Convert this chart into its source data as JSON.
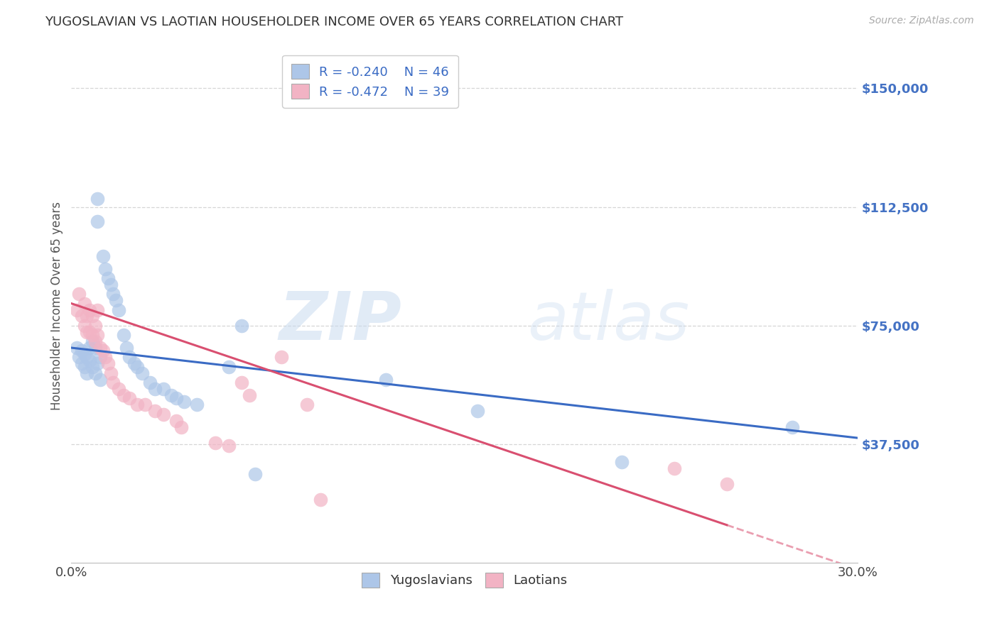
{
  "title": "YUGOSLAVIAN VS LAOTIAN HOUSEHOLDER INCOME OVER 65 YEARS CORRELATION CHART",
  "source": "Source: ZipAtlas.com",
  "ylabel": "Householder Income Over 65 years",
  "yticklabels": [
    "$37,500",
    "$75,000",
    "$112,500",
    "$150,000"
  ],
  "ytick_values": [
    37500,
    75000,
    112500,
    150000
  ],
  "ylim": [
    0,
    162500
  ],
  "xlim": [
    0.0,
    0.3
  ],
  "xticklabels": [
    "0.0%",
    "30.0%"
  ],
  "xtick_values": [
    0.0,
    0.3
  ],
  "blue_color": "#adc6e8",
  "pink_color": "#f2b3c4",
  "blue_line_color": "#3a6bc4",
  "pink_line_color": "#d94f70",
  "r_blue": -0.24,
  "n_blue": 46,
  "r_pink": -0.472,
  "n_pink": 39,
  "legend_label_blue": "Yugoslavians",
  "legend_label_pink": "Laotians",
  "watermark_zip": "ZIP",
  "watermark_atlas": "atlas",
  "background_color": "#ffffff",
  "grid_color": "#cccccc",
  "title_color": "#333333",
  "axis_label_color": "#555555",
  "right_tick_color": "#4472c4",
  "blue_points_x": [
    0.002,
    0.003,
    0.004,
    0.004,
    0.005,
    0.005,
    0.006,
    0.006,
    0.007,
    0.007,
    0.008,
    0.008,
    0.009,
    0.009,
    0.01,
    0.01,
    0.01,
    0.011,
    0.011,
    0.012,
    0.013,
    0.014,
    0.015,
    0.016,
    0.017,
    0.018,
    0.02,
    0.021,
    0.022,
    0.024,
    0.025,
    0.027,
    0.03,
    0.032,
    0.035,
    0.038,
    0.04,
    0.043,
    0.048,
    0.06,
    0.065,
    0.07,
    0.12,
    0.155,
    0.21,
    0.275
  ],
  "blue_points_y": [
    68000,
    65000,
    67000,
    63000,
    66000,
    62000,
    65000,
    60000,
    68000,
    64000,
    70000,
    62000,
    68000,
    60000,
    115000,
    108000,
    63000,
    65000,
    58000,
    97000,
    93000,
    90000,
    88000,
    85000,
    83000,
    80000,
    72000,
    68000,
    65000,
    63000,
    62000,
    60000,
    57000,
    55000,
    55000,
    53000,
    52000,
    51000,
    50000,
    62000,
    75000,
    28000,
    58000,
    48000,
    32000,
    43000
  ],
  "pink_points_x": [
    0.002,
    0.003,
    0.004,
    0.005,
    0.005,
    0.006,
    0.006,
    0.007,
    0.007,
    0.008,
    0.008,
    0.009,
    0.009,
    0.01,
    0.01,
    0.011,
    0.012,
    0.013,
    0.014,
    0.015,
    0.016,
    0.018,
    0.02,
    0.022,
    0.025,
    0.028,
    0.032,
    0.035,
    0.04,
    0.042,
    0.055,
    0.06,
    0.065,
    0.068,
    0.08,
    0.09,
    0.095,
    0.23,
    0.25
  ],
  "pink_points_y": [
    80000,
    85000,
    78000,
    82000,
    75000,
    78000,
    73000,
    80000,
    73000,
    78000,
    72000,
    75000,
    70000,
    80000,
    72000,
    68000,
    67000,
    65000,
    63000,
    60000,
    57000,
    55000,
    53000,
    52000,
    50000,
    50000,
    48000,
    47000,
    45000,
    43000,
    38000,
    37000,
    57000,
    53000,
    65000,
    50000,
    20000,
    30000,
    25000
  ],
  "blue_line_intercept": 68000,
  "blue_line_slope": -95000,
  "pink_line_intercept": 82000,
  "pink_line_slope": -280000
}
